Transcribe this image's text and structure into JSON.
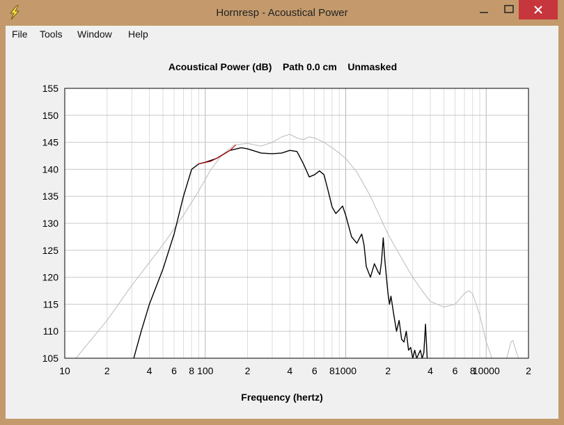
{
  "window": {
    "title": "Hornresp - Acoustical Power",
    "minimize_icon": "minimize-icon",
    "maximize_icon": "maximize-icon",
    "close_icon": "close-icon",
    "app_icon": "lightning-icon",
    "frame_color": "#c49a6c",
    "close_color": "#c7363d"
  },
  "menu": [
    "File",
    "Tools",
    "Window",
    "Help"
  ],
  "chart_data": {
    "type": "line",
    "title": "Acoustical Power (dB)    Path 0.0 cm    Unmasked",
    "xlabel": "Frequency (hertz)",
    "ylabel": "",
    "xscale": "log",
    "xlim": [
      10,
      20000
    ],
    "ylim": [
      105,
      155
    ],
    "yticks": [
      105,
      110,
      115,
      120,
      125,
      130,
      135,
      140,
      145,
      150,
      155
    ],
    "xticks": [
      {
        "v": 10,
        "label": "10"
      },
      {
        "v": 20,
        "label": "2"
      },
      {
        "v": 40,
        "label": "4"
      },
      {
        "v": 60,
        "label": "6"
      },
      {
        "v": 80,
        "label": "8"
      },
      {
        "v": 100,
        "label": "100"
      },
      {
        "v": 200,
        "label": "2"
      },
      {
        "v": 400,
        "label": "4"
      },
      {
        "v": 600,
        "label": "6"
      },
      {
        "v": 800,
        "label": "8"
      },
      {
        "v": 1000,
        "label": "1000"
      },
      {
        "v": 2000,
        "label": "2"
      },
      {
        "v": 4000,
        "label": "4"
      },
      {
        "v": 6000,
        "label": "6"
      },
      {
        "v": 8000,
        "label": "8"
      },
      {
        "v": 10000,
        "label": "10000"
      },
      {
        "v": 20000,
        "label": "2"
      }
    ],
    "grid": true,
    "series": [
      {
        "color": "#c0c0c0",
        "points": [
          [
            12,
            105
          ],
          [
            20,
            112
          ],
          [
            30,
            118.5
          ],
          [
            50,
            126
          ],
          [
            70,
            131.5
          ],
          [
            90,
            136
          ],
          [
            110,
            140
          ],
          [
            130,
            142.5
          ],
          [
            160,
            144.5
          ],
          [
            200,
            144.8
          ],
          [
            250,
            144.3
          ],
          [
            300,
            145
          ],
          [
            350,
            146
          ],
          [
            400,
            146.5
          ],
          [
            450,
            145.8
          ],
          [
            500,
            145.5
          ],
          [
            550,
            146
          ],
          [
            600,
            145.8
          ],
          [
            700,
            145
          ],
          [
            800,
            144
          ],
          [
            900,
            143
          ],
          [
            1000,
            142
          ],
          [
            1200,
            139.5
          ],
          [
            1500,
            135
          ],
          [
            2000,
            128
          ],
          [
            2500,
            123.5
          ],
          [
            3000,
            120
          ],
          [
            3500,
            117.5
          ],
          [
            4000,
            115.5
          ],
          [
            5000,
            114.5
          ],
          [
            6000,
            115
          ],
          [
            6500,
            116
          ],
          [
            7000,
            117
          ],
          [
            7500,
            117.5
          ],
          [
            8000,
            117
          ],
          [
            9000,
            113
          ],
          [
            10000,
            108
          ],
          [
            11000,
            105
          ],
          [
            14000,
            105
          ],
          [
            15000,
            108
          ],
          [
            15500,
            108.3
          ],
          [
            16000,
            107
          ],
          [
            17000,
            105
          ]
        ]
      },
      {
        "color": "#000000",
        "points": [
          [
            31,
            105
          ],
          [
            35,
            110
          ],
          [
            40,
            115
          ],
          [
            50,
            121.5
          ],
          [
            60,
            128
          ],
          [
            70,
            135
          ],
          [
            80,
            140
          ],
          [
            90,
            141
          ],
          [
            100,
            141.3
          ],
          [
            120,
            142
          ],
          [
            150,
            143.5
          ],
          [
            180,
            144
          ],
          [
            200,
            143.8
          ],
          [
            250,
            143
          ],
          [
            300,
            142.9
          ],
          [
            350,
            143
          ],
          [
            400,
            143.5
          ],
          [
            450,
            143.3
          ],
          [
            500,
            141
          ],
          [
            550,
            138.6
          ],
          [
            600,
            139
          ],
          [
            650,
            139.7
          ],
          [
            700,
            139
          ],
          [
            750,
            136
          ],
          [
            800,
            133
          ],
          [
            850,
            131.8
          ],
          [
            900,
            132.5
          ],
          [
            950,
            133.2
          ],
          [
            1000,
            131.5
          ],
          [
            1100,
            127.5
          ],
          [
            1200,
            126.3
          ],
          [
            1250,
            127.2
          ],
          [
            1300,
            128
          ],
          [
            1350,
            126
          ],
          [
            1400,
            122
          ],
          [
            1500,
            120
          ],
          [
            1600,
            122.5
          ],
          [
            1700,
            121
          ],
          [
            1750,
            120.5
          ],
          [
            1800,
            123
          ],
          [
            1850,
            127.3
          ],
          [
            1900,
            123
          ],
          [
            2000,
            117
          ],
          [
            2050,
            115
          ],
          [
            2100,
            116.5
          ],
          [
            2200,
            113
          ],
          [
            2300,
            110
          ],
          [
            2400,
            112
          ],
          [
            2500,
            108.5
          ],
          [
            2600,
            108
          ],
          [
            2700,
            110
          ],
          [
            2800,
            106.5
          ],
          [
            2900,
            107
          ],
          [
            3000,
            105
          ],
          [
            3100,
            106.5
          ],
          [
            3200,
            105
          ],
          [
            3400,
            106.5
          ],
          [
            3500,
            105
          ],
          [
            3600,
            106
          ],
          [
            3700,
            111.3
          ],
          [
            3800,
            105
          ]
        ]
      },
      {
        "color": "#c00000",
        "points": [
          [
            90,
            141
          ],
          [
            110,
            141.5
          ],
          [
            130,
            142.5
          ],
          [
            150,
            143.5
          ],
          [
            165,
            144.5
          ]
        ]
      }
    ]
  }
}
